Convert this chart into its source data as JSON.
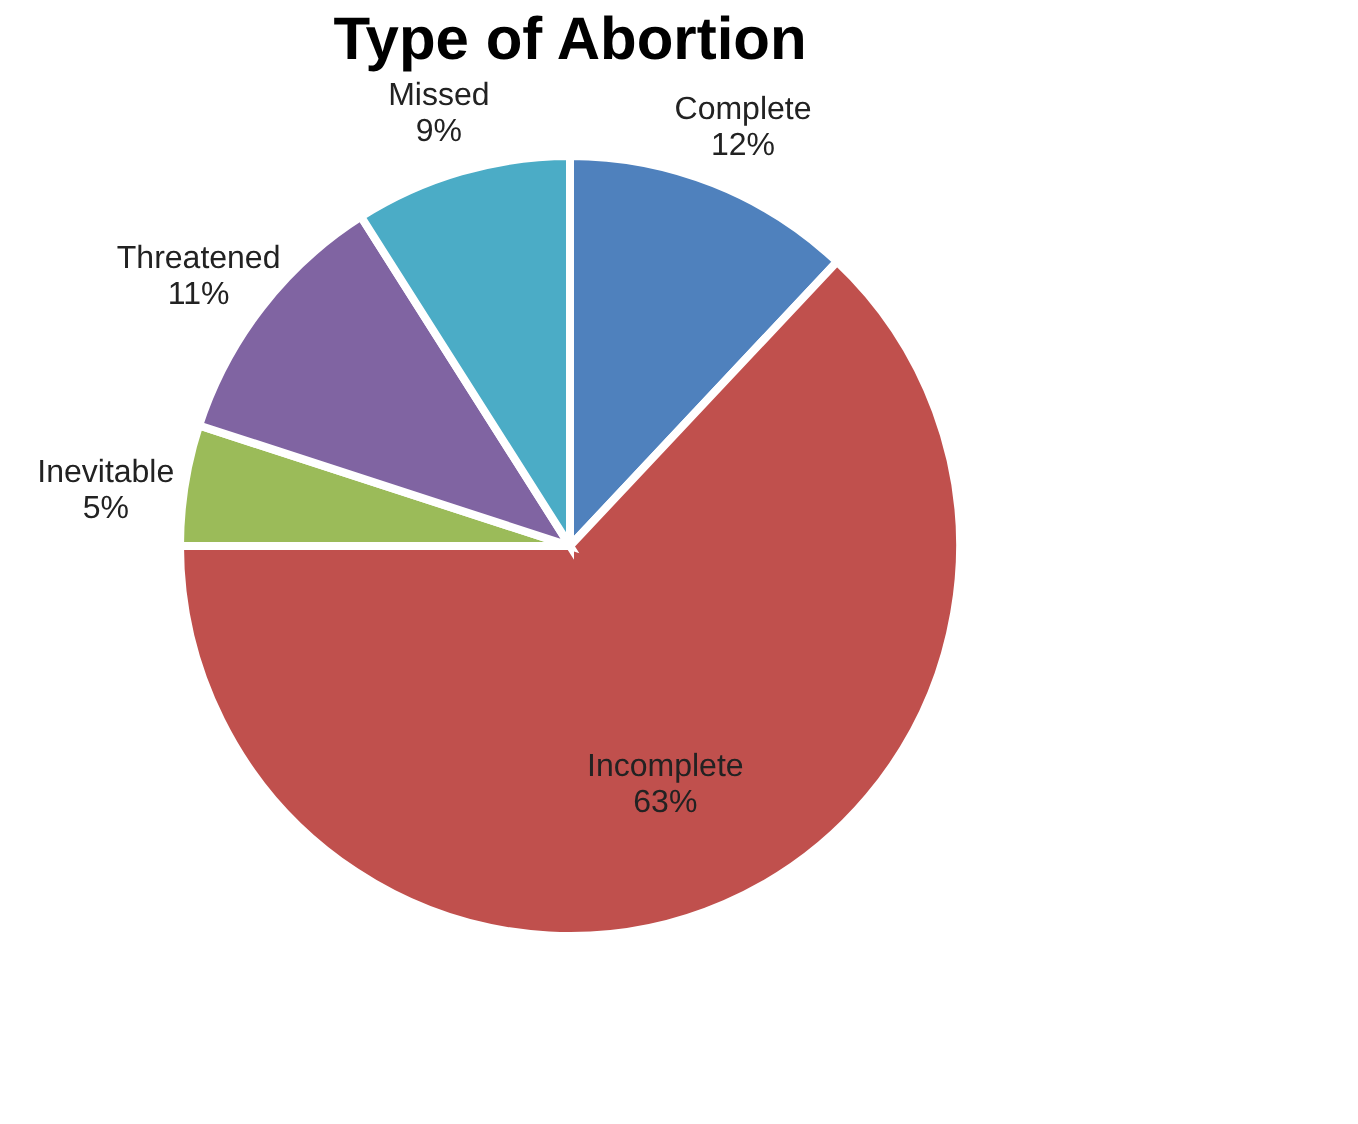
{
  "chart_data": {
    "type": "pie",
    "title": "Type of Abortion",
    "categories": [
      "Complete",
      "Incomplete",
      "Inevitable",
      "Threatened",
      "Missed"
    ],
    "values": [
      12,
      63,
      5,
      11,
      9
    ],
    "value_labels": [
      "12%",
      "63%",
      "5%",
      "11%",
      "9%"
    ],
    "colors": [
      "#4f81bd",
      "#c0504d",
      "#9bbb59",
      "#8064a2",
      "#4bacc6"
    ],
    "legend": false
  }
}
